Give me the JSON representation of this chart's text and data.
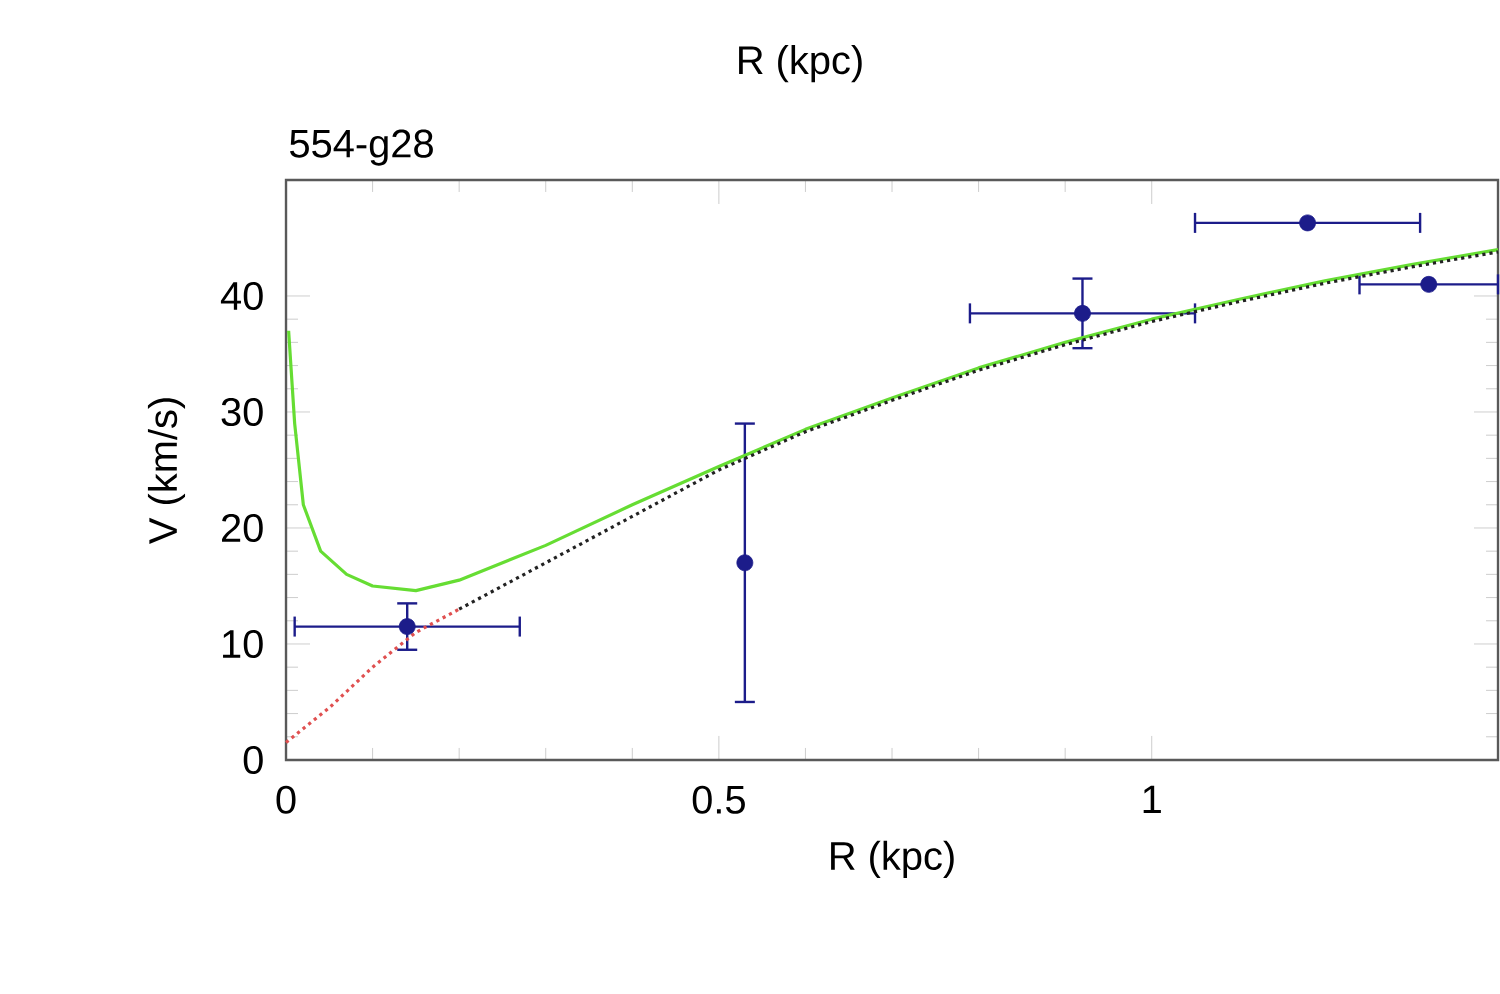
{
  "chart_data": {
    "type": "scatter",
    "title": "554-g28",
    "xlabel": "R (kpc)",
    "ylabel": "V (km/s)",
    "annotations": [
      "R (kpc)"
    ],
    "xlim": [
      0,
      1.4
    ],
    "ylim": [
      0,
      50
    ],
    "xticks": [
      0,
      0.5,
      1
    ],
    "yticks": [
      0,
      10,
      20,
      30,
      40
    ],
    "series": [
      {
        "color": "#1c1c8a",
        "marker": "circle",
        "x": [
          0.14,
          0.53,
          0.92,
          1.18,
          1.32
        ],
        "values": [
          11.5,
          17,
          38.5,
          46.3,
          41
        ],
        "errors": [
          2,
          12,
          3,
          null,
          null
        ],
        "xerrors": [
          0.13,
          null,
          0.13,
          0.13,
          0.08
        ]
      },
      {
        "type": "line",
        "color": "#66dd33",
        "line_style": "solid",
        "marker": "none",
        "x": [
          0.003,
          0.01,
          0.02,
          0.04,
          0.07,
          0.1,
          0.15,
          0.2,
          0.3,
          0.4,
          0.5,
          0.6,
          0.7,
          0.8,
          0.9,
          1.0,
          1.1,
          1.2,
          1.3,
          1.4
        ],
        "values": [
          37,
          29,
          22,
          18,
          16,
          15,
          14.6,
          15.5,
          18.5,
          22,
          25.3,
          28.5,
          31.2,
          33.8,
          36,
          38,
          39.7,
          41.3,
          42.7,
          44
        ]
      },
      {
        "type": "line",
        "color": "#e05050",
        "line_style": "dotted",
        "marker": "none",
        "x": [
          0,
          0.05,
          0.1,
          0.15,
          0.2
        ],
        "values": [
          1.5,
          4.5,
          8,
          11,
          13
        ]
      },
      {
        "type": "line",
        "color": "#222222",
        "line_style": "dotted",
        "marker": "none",
        "x": [
          0.2,
          0.3,
          0.4,
          0.5,
          0.6,
          0.7,
          0.8,
          0.9,
          1.0,
          1.1,
          1.2,
          1.3,
          1.4
        ],
        "values": [
          13,
          17,
          21,
          25,
          28.3,
          31,
          33.6,
          35.8,
          37.8,
          39.5,
          41.1,
          42.5,
          43.8
        ]
      }
    ]
  }
}
